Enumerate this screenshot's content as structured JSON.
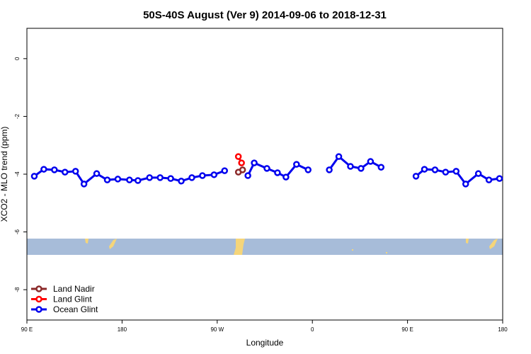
{
  "chart_data": {
    "type": "line",
    "title": "50S-40S August (Ver 9)   2014-09-06 to 2018-12-31",
    "xlabel": "Longitude",
    "ylabel": "XCO2 - MLO trend (ppm)",
    "xlim": [
      90,
      540
    ],
    "ylim": [
      -9.05,
      1.05
    ],
    "xticks": [
      {
        "value": 90,
        "label": "90 E"
      },
      180,
      {
        "value": 270,
        "label": "90 W"
      },
      {
        "value": 360,
        "label": "0"
      },
      {
        "value": 450,
        "label": "90 E"
      },
      {
        "value": 540,
        "label": "180"
      }
    ],
    "yticks": [
      0,
      -2,
      -4,
      -6,
      -8
    ],
    "legend": "bottom-left",
    "series": [
      {
        "name": "Land Nadir",
        "color": "#8b2a2a",
        "x": [
          290,
          294
        ],
        "values": [
          -3.93,
          -3.85
        ]
      },
      {
        "name": "Land Glint",
        "color": "#ff0000",
        "x": [
          290,
          293
        ],
        "values": [
          -3.39,
          -3.61
        ]
      },
      {
        "name": "Ocean Glint",
        "color": "#0000ee",
        "x": [
          97,
          106,
          116,
          126,
          136,
          144,
          156,
          166,
          176,
          187,
          195,
          206,
          216,
          226,
          236,
          246,
          256,
          267,
          277,
          null,
          299,
          305,
          317,
          327,
          335,
          345,
          356,
          null,
          376,
          385,
          396,
          406,
          415,
          425,
          null,
          458,
          466,
          476,
          486,
          496,
          505,
          517,
          527,
          537
        ],
        "values": [
          -4.07,
          -3.83,
          -3.85,
          -3.93,
          -3.9,
          -4.34,
          -3.98,
          -4.2,
          -4.17,
          -4.2,
          -4.22,
          -4.12,
          -4.12,
          -4.15,
          -4.24,
          -4.12,
          -4.05,
          -4.02,
          -3.88,
          null,
          -4.05,
          -3.61,
          -3.8,
          -3.95,
          -4.1,
          -3.66,
          -3.85,
          null,
          -3.85,
          -3.39,
          -3.73,
          -3.8,
          -3.56,
          -3.76,
          null,
          -4.07,
          -3.83,
          -3.85,
          -3.93,
          -3.9,
          -4.34,
          -3.98,
          -4.2,
          -4.15
        ]
      }
    ]
  }
}
